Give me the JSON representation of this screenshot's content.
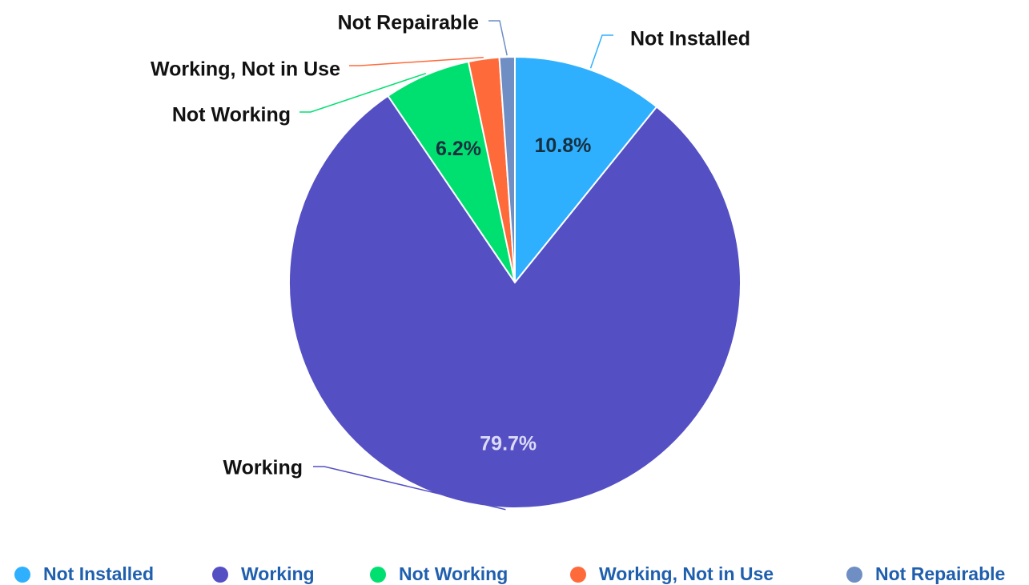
{
  "chart_data": {
    "type": "pie",
    "categories": [
      "Not Installed",
      "Working",
      "Not Working",
      "Working, Not in Use",
      "Not Repairable"
    ],
    "values": [
      10.8,
      79.7,
      6.2,
      2.2,
      1.1
    ],
    "value_labels": [
      "10.8%",
      "79.7%",
      "6.2%",
      null,
      null
    ],
    "colors": [
      "#2eb0ff",
      "#5450c4",
      "#00e070",
      "#ff6a3a",
      "#6e8ec4"
    ],
    "legend": "bottom"
  }
}
